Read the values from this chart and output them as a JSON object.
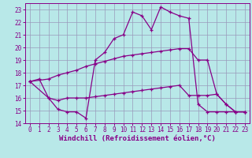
{
  "bg_color": "#b8e8e8",
  "plot_bg_color": "#b8e8e8",
  "grid_color": "#9999bb",
  "line_color": "#880088",
  "xlabel": "Windchill (Refroidissement éolien,°C)",
  "xlim": [
    -0.5,
    23.5
  ],
  "ylim": [
    14,
    23.5
  ],
  "xticks": [
    0,
    1,
    2,
    3,
    4,
    5,
    6,
    7,
    8,
    9,
    10,
    11,
    12,
    13,
    14,
    15,
    16,
    17,
    18,
    19,
    20,
    21,
    22,
    23
  ],
  "yticks": [
    14,
    15,
    16,
    17,
    18,
    19,
    20,
    21,
    22,
    23
  ],
  "axis_fontsize": 6.5,
  "tick_fontsize": 5.5,
  "series1_x": [
    0,
    1,
    2,
    3,
    4,
    5,
    6,
    7,
    8,
    9,
    10,
    11,
    12,
    13,
    14,
    15,
    16,
    17,
    18,
    19,
    20,
    21,
    22,
    23
  ],
  "series1_y": [
    17.3,
    17.5,
    16.0,
    15.1,
    14.9,
    14.9,
    14.4,
    19.0,
    19.6,
    20.7,
    21.0,
    22.8,
    22.5,
    21.4,
    23.2,
    22.8,
    22.5,
    22.3,
    15.5,
    14.9,
    14.9,
    14.9,
    14.9,
    14.9
  ],
  "series2_x": [
    0,
    2,
    3,
    4,
    5,
    6,
    7,
    8,
    9,
    10,
    11,
    12,
    13,
    14,
    15,
    16,
    17,
    18,
    19,
    20,
    21,
    22,
    23
  ],
  "series2_y": [
    17.3,
    17.5,
    17.8,
    18.0,
    18.2,
    18.5,
    18.7,
    18.9,
    19.1,
    19.3,
    19.4,
    19.5,
    19.6,
    19.7,
    19.8,
    19.9,
    19.9,
    19.0,
    19.0,
    16.3,
    15.5,
    14.9,
    14.9
  ],
  "series3_x": [
    0,
    2,
    3,
    4,
    5,
    6,
    7,
    8,
    9,
    10,
    11,
    12,
    13,
    14,
    15,
    16,
    17,
    18,
    19,
    20,
    21,
    22,
    23
  ],
  "series3_y": [
    17.3,
    16.0,
    15.8,
    16.0,
    16.0,
    16.0,
    16.1,
    16.2,
    16.3,
    16.4,
    16.5,
    16.6,
    16.7,
    16.8,
    16.9,
    17.0,
    16.2,
    16.2,
    16.2,
    16.3,
    15.5,
    14.9,
    14.9
  ]
}
